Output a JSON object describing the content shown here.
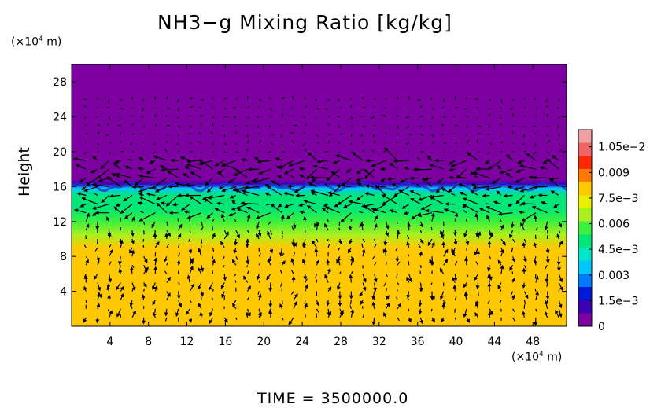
{
  "chart_data": {
    "type": "heatmap",
    "title": "NH3−g Mixing Ratio [kg/kg]",
    "ylabel": "Height",
    "x_unit_label": {
      "prefix": "(×10",
      "exp": "4",
      "suffix": " m)"
    },
    "y_unit_label": {
      "prefix": "(×10",
      "exp": "4",
      "suffix": " m)"
    },
    "footer": "TIME  =  3500000.0",
    "xlim": [
      0,
      51.5
    ],
    "ylim": [
      0,
      30
    ],
    "x_ticks": [
      4,
      8,
      12,
      16,
      20,
      24,
      28,
      32,
      36,
      40,
      44,
      48
    ],
    "y_ticks": [
      4,
      8,
      12,
      16,
      20,
      24,
      28
    ],
    "colorbar": {
      "range": [
        0,
        0.0115
      ],
      "tick_values": [
        0,
        0.0015,
        0.003,
        0.0045,
        0.006,
        0.0075,
        0.009,
        0.0105
      ],
      "tick_labels": [
        "0",
        "1.5e−3",
        "0.003",
        "4.5e−3",
        "0.006",
        "7.5e−3",
        "0.009",
        "1.05e−2"
      ],
      "colors": [
        "#7d00a0",
        "#3c00b4",
        "#0018d8",
        "#0078ff",
        "#00c8ff",
        "#00e6c8",
        "#00e678",
        "#3cf03c",
        "#a8f01e",
        "#e6f000",
        "#ffc800",
        "#ff7800",
        "#ff2800",
        "#f06464",
        "#f0a0a0"
      ]
    },
    "field_profile": [
      {
        "height": 0,
        "value": 0.0082
      },
      {
        "height": 9,
        "value": 0.0082
      },
      {
        "height": 10.5,
        "value": 0.0066
      },
      {
        "height": 12,
        "value": 0.0058
      },
      {
        "height": 13.5,
        "value": 0.0052
      },
      {
        "height": 15,
        "value": 0.0046
      },
      {
        "height": 15.8,
        "value": 0.0036
      },
      {
        "height": 16.3,
        "value": 0.0015
      },
      {
        "height": 16.8,
        "value": 0
      },
      {
        "height": 30,
        "value": 0
      }
    ],
    "overlay": "wind vectors"
  },
  "colors": {
    "background": "#7b00a6",
    "lower_layer": "#d4ec16",
    "vector": "#000000"
  }
}
